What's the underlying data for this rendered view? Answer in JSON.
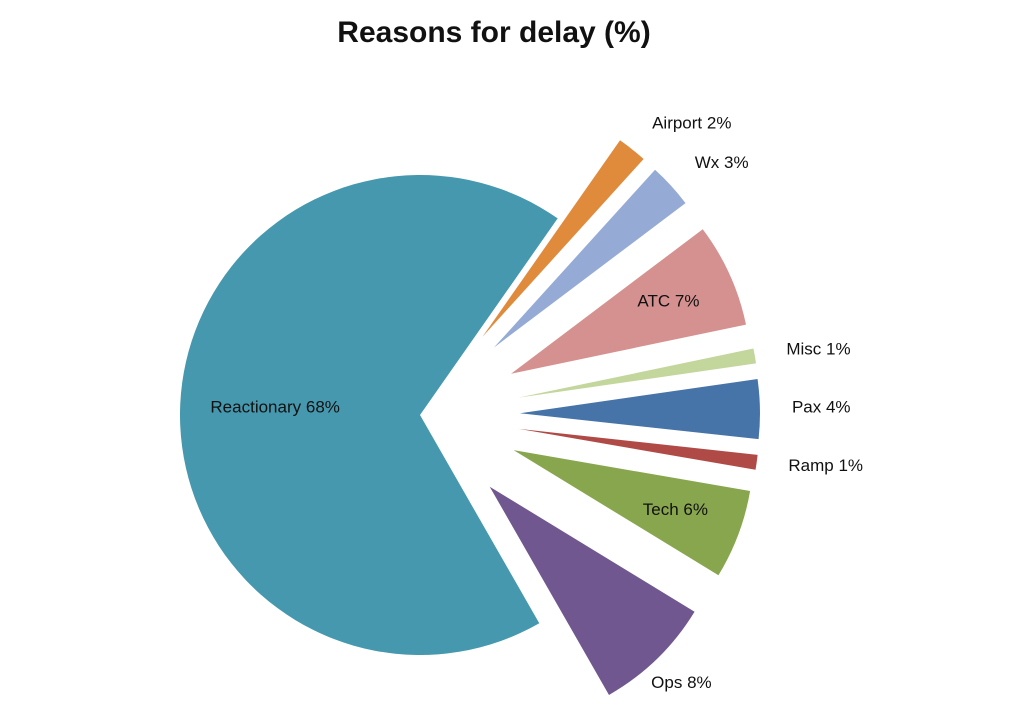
{
  "chart_data": {
    "type": "pie",
    "title": "Reasons for delay (%)",
    "categories": [
      "Airport",
      "Wx",
      "ATC",
      "Misc",
      "Pax",
      "Ramp",
      "Tech",
      "Ops",
      "Reactionary"
    ],
    "values": [
      2,
      3,
      7,
      1,
      4,
      1,
      6,
      8,
      68
    ],
    "value_labels": [
      "2%",
      "3%",
      "7%",
      "1%",
      "4%",
      "1%",
      "6%",
      "8%",
      "68%"
    ],
    "colors": [
      "#e08a3c",
      "#95abd6",
      "#d49190",
      "#c3d69b",
      "#4673a8",
      "#b04a46",
      "#88a64e",
      "#71578f",
      "#4598ae"
    ]
  }
}
